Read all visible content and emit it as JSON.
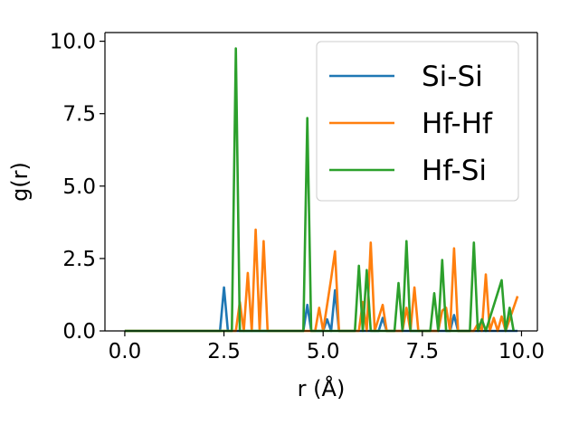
{
  "chart_data": {
    "type": "line",
    "title": "",
    "xlabel": "r (Å)",
    "ylabel": "g(r)",
    "xlim": [
      -0.5,
      10.4
    ],
    "ylim": [
      0.0,
      10.3
    ],
    "xticks": [
      0.0,
      2.5,
      5.0,
      7.5,
      10.0
    ],
    "xtick_labels": [
      "0.0",
      "2.5",
      "5.0",
      "7.5",
      "10.0"
    ],
    "yticks": [
      0.0,
      2.5,
      5.0,
      7.5,
      10.0
    ],
    "ytick_labels": [
      "0.0",
      "2.5",
      "5.0",
      "7.5",
      "10.0"
    ],
    "grid": false,
    "legend_position": "top-right",
    "series": [
      {
        "name": "Si-Si",
        "color": "#1f77b4",
        "points": [
          [
            0.0,
            0
          ],
          [
            2.4,
            0
          ],
          [
            2.5,
            1.5
          ],
          [
            2.6,
            0
          ],
          [
            4.5,
            0
          ],
          [
            4.6,
            0.9
          ],
          [
            4.7,
            0
          ],
          [
            5.0,
            0
          ],
          [
            5.1,
            0.4
          ],
          [
            5.2,
            0
          ],
          [
            5.3,
            1.4
          ],
          [
            5.4,
            0
          ],
          [
            6.4,
            0
          ],
          [
            6.5,
            0.45
          ],
          [
            6.6,
            0
          ],
          [
            8.2,
            0
          ],
          [
            8.3,
            0.55
          ],
          [
            8.4,
            0
          ],
          [
            9.9,
            0
          ]
        ]
      },
      {
        "name": "Hf-Hf",
        "color": "#ff7f0e",
        "points": [
          [
            0.0,
            0
          ],
          [
            2.8,
            0
          ],
          [
            2.9,
            1.0
          ],
          [
            3.0,
            0
          ],
          [
            3.1,
            2.0
          ],
          [
            3.2,
            0
          ],
          [
            3.3,
            3.5
          ],
          [
            3.4,
            0
          ],
          [
            3.5,
            3.1
          ],
          [
            3.6,
            0
          ],
          [
            4.8,
            0
          ],
          [
            4.9,
            0.8
          ],
          [
            5.0,
            0
          ],
          [
            5.2,
            1.8
          ],
          [
            5.3,
            2.75
          ],
          [
            5.4,
            0
          ],
          [
            5.9,
            0
          ],
          [
            6.0,
            1.0
          ],
          [
            6.1,
            0
          ],
          [
            6.2,
            3.05
          ],
          [
            6.3,
            0
          ],
          [
            6.5,
            0.9
          ],
          [
            6.6,
            0
          ],
          [
            7.0,
            0
          ],
          [
            7.1,
            0.8
          ],
          [
            7.2,
            0
          ],
          [
            7.3,
            1.5
          ],
          [
            7.4,
            0
          ],
          [
            7.9,
            0
          ],
          [
            8.0,
            0.7
          ],
          [
            8.1,
            0.8
          ],
          [
            8.2,
            0
          ],
          [
            8.3,
            2.85
          ],
          [
            8.4,
            0
          ],
          [
            8.8,
            0
          ],
          [
            8.9,
            0.25
          ],
          [
            9.0,
            0
          ],
          [
            9.1,
            1.95
          ],
          [
            9.2,
            0
          ],
          [
            9.3,
            0.45
          ],
          [
            9.4,
            0
          ],
          [
            9.5,
            0.5
          ],
          [
            9.6,
            0
          ],
          [
            9.8,
            0.8
          ],
          [
            9.9,
            1.2
          ]
        ]
      },
      {
        "name": "Hf-Si",
        "color": "#2ca02c",
        "points": [
          [
            0.0,
            0
          ],
          [
            2.7,
            0
          ],
          [
            2.8,
            9.75
          ],
          [
            2.9,
            0
          ],
          [
            4.5,
            0
          ],
          [
            4.6,
            7.35
          ],
          [
            4.7,
            0
          ],
          [
            5.8,
            0
          ],
          [
            5.9,
            2.25
          ],
          [
            6.0,
            0
          ],
          [
            6.1,
            2.1
          ],
          [
            6.2,
            0
          ],
          [
            6.8,
            0
          ],
          [
            6.9,
            1.65
          ],
          [
            7.0,
            0
          ],
          [
            7.1,
            3.1
          ],
          [
            7.2,
            0
          ],
          [
            7.7,
            0
          ],
          [
            7.8,
            1.3
          ],
          [
            7.9,
            0
          ],
          [
            8.0,
            2.45
          ],
          [
            8.1,
            0
          ],
          [
            8.7,
            0
          ],
          [
            8.8,
            3.05
          ],
          [
            8.9,
            0
          ],
          [
            9.0,
            0.4
          ],
          [
            9.1,
            0
          ],
          [
            9.5,
            1.75
          ],
          [
            9.6,
            0
          ],
          [
            9.7,
            0.8
          ],
          [
            9.8,
            0
          ]
        ]
      }
    ]
  }
}
